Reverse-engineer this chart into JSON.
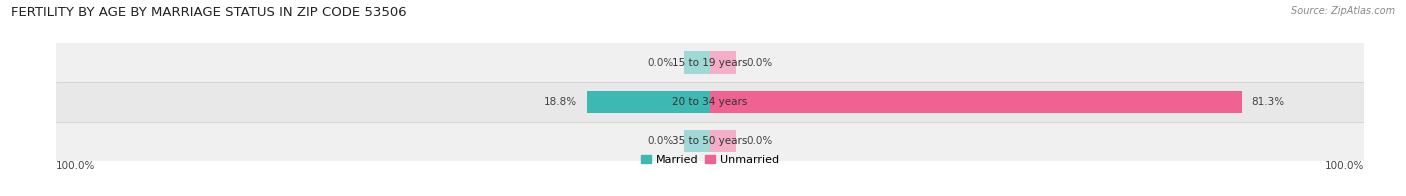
{
  "title": "FERTILITY BY AGE BY MARRIAGE STATUS IN ZIP CODE 53506",
  "source": "Source: ZipAtlas.com",
  "categories": [
    "15 to 19 years",
    "20 to 34 years",
    "35 to 50 years"
  ],
  "married_values": [
    0.0,
    18.8,
    0.0
  ],
  "unmarried_values": [
    0.0,
    81.3,
    0.0
  ],
  "married_color": "#3db8b2",
  "married_light_color": "#a0d8d5",
  "unmarried_color": "#f06292",
  "unmarried_light_color": "#f5aec8",
  "row_bg_colors": [
    "#f0f0f0",
    "#e8e8e8",
    "#f0f0f0"
  ],
  "title_fontsize": 9.5,
  "label_fontsize": 7.5,
  "tick_fontsize": 7.5,
  "source_fontsize": 7,
  "legend_fontsize": 8,
  "x_left_label": "100.0%",
  "x_right_label": "100.0%",
  "figure_bg": "#ffffff",
  "small_bar_width": 4.0,
  "bar_height": 0.58
}
